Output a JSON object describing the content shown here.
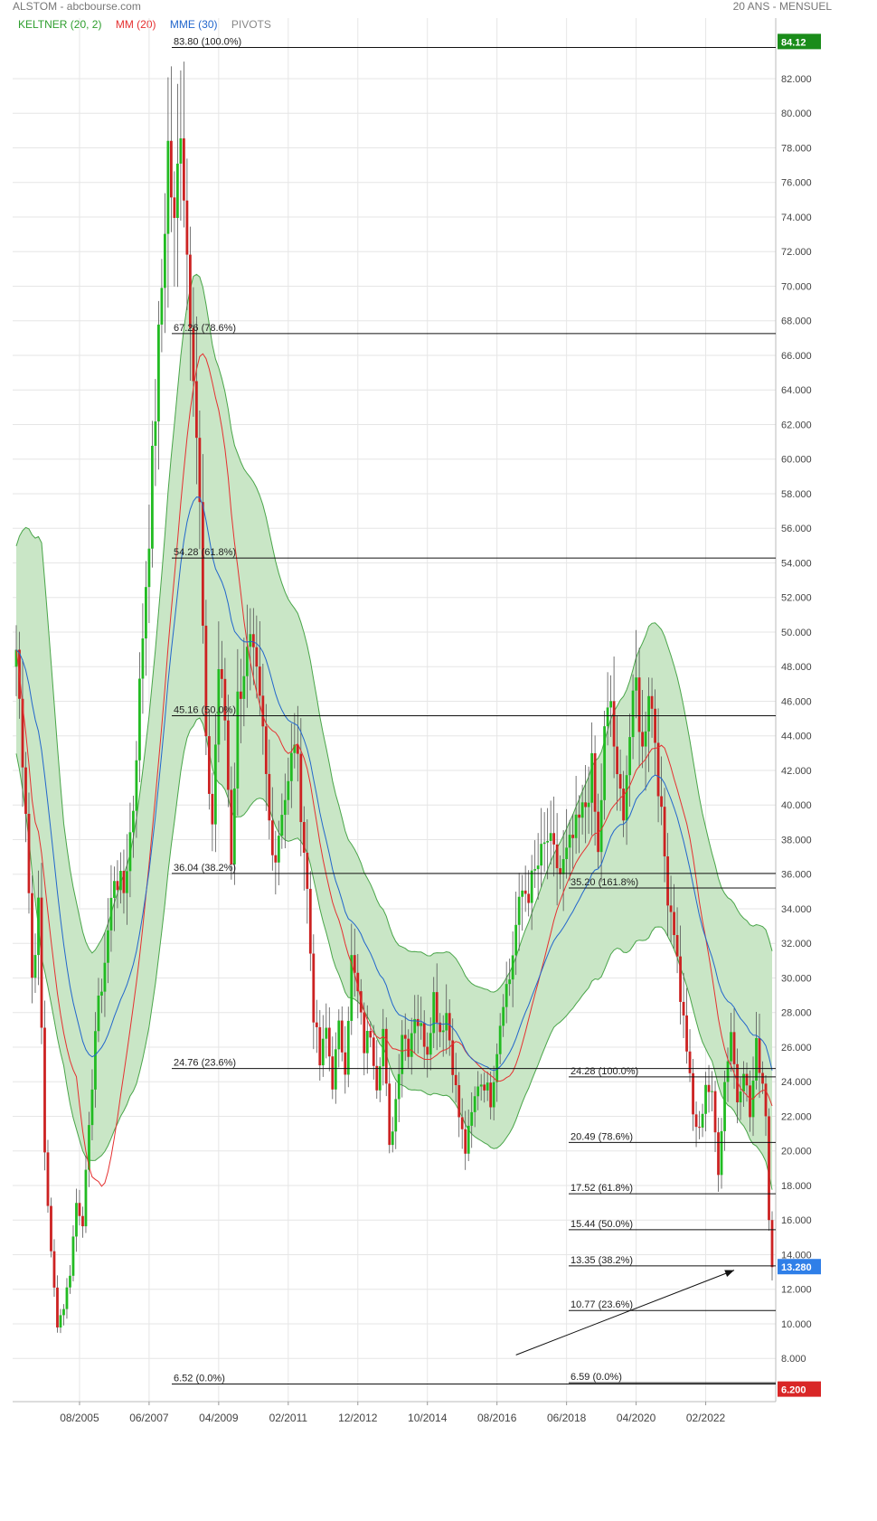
{
  "header": {
    "title": "ALSTOM - abcbourse.com",
    "period": "20 ANS - MENSUEL"
  },
  "legend": {
    "keltner": "KELTNER (20, 2)",
    "mm": "MM (20)",
    "mme": "MME (30)",
    "pivots": "PIVOTS"
  },
  "colors": {
    "up": "#22bb22",
    "down": "#cc2222",
    "mm": "#e53030",
    "mme": "#2266cc",
    "band_fill": "#c9e6c6",
    "band_edge": "#49a549",
    "last_price_bg": "#2f7fe8",
    "top_label_bg": "#1a8c1a",
    "bottom_label_bg": "#d92626"
  },
  "chart_data": {
    "type": "candlestick",
    "title": "ALSTOM",
    "ylim": [
      5.5,
      85.5
    ],
    "y_ticks": [
      8,
      10,
      12,
      14,
      16,
      18,
      20,
      22,
      24,
      26,
      28,
      30,
      32,
      34,
      36,
      38,
      40,
      42,
      44,
      46,
      48,
      50,
      52,
      54,
      56,
      58,
      60,
      62,
      64,
      66,
      68,
      70,
      72,
      74,
      76,
      78,
      80,
      82
    ],
    "y_tick_labels": [
      "8.000",
      "10.000",
      "12.000",
      "14.000",
      "16.000",
      "18.000",
      "20.000",
      "22.000",
      "24.000",
      "26.000",
      "28.000",
      "30.000",
      "32.000",
      "34.000",
      "36.000",
      "38.000",
      "40.000",
      "42.000",
      "44.000",
      "46.000",
      "48.000",
      "50.000",
      "52.000",
      "54.000",
      "56.000",
      "58.000",
      "60.000",
      "62.000",
      "64.000",
      "66.000",
      "68.000",
      "70.000",
      "72.000",
      "74.000",
      "76.000",
      "78.000",
      "80.000",
      "82.000"
    ],
    "x_tick_labels": [
      {
        "label": "08/2005",
        "month": 20
      },
      {
        "label": "06/2007",
        "month": 42
      },
      {
        "label": "04/2009",
        "month": 64
      },
      {
        "label": "02/2011",
        "month": 86
      },
      {
        "label": "12/2012",
        "month": 108
      },
      {
        "label": "10/2014",
        "month": 130
      },
      {
        "label": "08/2016",
        "month": 152
      },
      {
        "label": "06/2018",
        "month": 174
      },
      {
        "label": "04/2020",
        "month": 196
      },
      {
        "label": "02/2022",
        "month": 218
      }
    ],
    "months_total": 240,
    "last_price": "13.280",
    "top_value_label": "84.12",
    "bottom_value_label": "6.200",
    "close_anchors": [
      [
        0,
        49
      ],
      [
        3,
        40
      ],
      [
        5,
        30
      ],
      [
        7,
        34
      ],
      [
        9,
        20
      ],
      [
        11,
        14
      ],
      [
        13,
        10
      ],
      [
        15,
        11
      ],
      [
        17,
        13
      ],
      [
        19,
        17
      ],
      [
        21,
        16
      ],
      [
        23,
        21
      ],
      [
        25,
        27
      ],
      [
        28,
        31
      ],
      [
        31,
        36
      ],
      [
        34,
        35
      ],
      [
        37,
        40
      ],
      [
        40,
        50
      ],
      [
        42,
        56
      ],
      [
        44,
        63
      ],
      [
        46,
        70
      ],
      [
        48,
        78
      ],
      [
        50,
        73
      ],
      [
        52,
        80
      ],
      [
        54,
        72
      ],
      [
        56,
        66
      ],
      [
        58,
        57
      ],
      [
        60,
        43
      ],
      [
        62,
        39
      ],
      [
        64,
        48
      ],
      [
        66,
        45
      ],
      [
        68,
        37
      ],
      [
        70,
        46
      ],
      [
        72,
        48
      ],
      [
        74,
        49
      ],
      [
        76,
        47
      ],
      [
        78,
        44
      ],
      [
        80,
        39
      ],
      [
        82,
        37
      ],
      [
        84,
        40
      ],
      [
        86,
        41
      ],
      [
        88,
        44
      ],
      [
        90,
        40
      ],
      [
        92,
        35
      ],
      [
        94,
        28
      ],
      [
        96,
        25
      ],
      [
        98,
        27
      ],
      [
        100,
        24
      ],
      [
        102,
        27
      ],
      [
        104,
        25
      ],
      [
        106,
        31
      ],
      [
        108,
        29
      ],
      [
        110,
        26
      ],
      [
        112,
        27
      ],
      [
        114,
        24
      ],
      [
        116,
        27
      ],
      [
        118,
        20
      ],
      [
        120,
        23
      ],
      [
        122,
        27
      ],
      [
        124,
        26
      ],
      [
        126,
        28
      ],
      [
        128,
        27
      ],
      [
        130,
        26
      ],
      [
        132,
        29
      ],
      [
        134,
        27
      ],
      [
        136,
        28
      ],
      [
        138,
        25
      ],
      [
        140,
        22
      ],
      [
        142,
        20
      ],
      [
        144,
        22
      ],
      [
        146,
        24
      ],
      [
        148,
        24
      ],
      [
        150,
        23
      ],
      [
        152,
        26
      ],
      [
        154,
        29
      ],
      [
        156,
        30
      ],
      [
        158,
        33
      ],
      [
        160,
        35
      ],
      [
        162,
        35
      ],
      [
        164,
        36
      ],
      [
        166,
        37
      ],
      [
        168,
        38
      ],
      [
        170,
        37
      ],
      [
        172,
        36
      ],
      [
        174,
        37
      ],
      [
        176,
        38
      ],
      [
        178,
        39
      ],
      [
        180,
        40
      ],
      [
        182,
        42
      ],
      [
        184,
        37
      ],
      [
        186,
        44
      ],
      [
        188,
        46
      ],
      [
        190,
        41
      ],
      [
        192,
        40
      ],
      [
        194,
        44
      ],
      [
        196,
        47
      ],
      [
        198,
        43
      ],
      [
        200,
        47
      ],
      [
        202,
        44
      ],
      [
        204,
        39
      ],
      [
        206,
        35
      ],
      [
        208,
        33
      ],
      [
        210,
        29
      ],
      [
        212,
        26
      ],
      [
        214,
        22
      ],
      [
        216,
        21
      ],
      [
        218,
        24
      ],
      [
        220,
        23
      ],
      [
        222,
        19
      ],
      [
        224,
        24
      ],
      [
        226,
        27
      ],
      [
        228,
        23
      ],
      [
        230,
        25
      ],
      [
        232,
        22
      ],
      [
        234,
        26
      ],
      [
        236,
        24
      ],
      [
        237,
        22
      ],
      [
        238,
        16
      ],
      [
        239,
        13.28
      ]
    ],
    "band_halfwidth_anchors": [
      [
        0,
        6
      ],
      [
        8,
        12
      ],
      [
        15,
        7
      ],
      [
        24,
        6
      ],
      [
        36,
        7
      ],
      [
        48,
        11
      ],
      [
        56,
        13
      ],
      [
        64,
        12
      ],
      [
        72,
        10
      ],
      [
        80,
        8
      ],
      [
        92,
        6
      ],
      [
        110,
        4
      ],
      [
        130,
        4
      ],
      [
        150,
        4.5
      ],
      [
        170,
        5
      ],
      [
        190,
        7
      ],
      [
        200,
        9
      ],
      [
        210,
        8
      ],
      [
        220,
        6
      ],
      [
        230,
        6
      ],
      [
        240,
        7
      ]
    ],
    "fib_left": [
      {
        "label": "83.80 (100.0%)",
        "value": 83.8
      },
      {
        "label": "67.26 (78.6%)",
        "value": 67.26
      },
      {
        "label": "54.28 (61.8%)",
        "value": 54.28
      },
      {
        "label": "45.16 (50.0%)",
        "value": 45.16
      },
      {
        "label": "36.04 (38.2%)",
        "value": 36.04
      },
      {
        "label": "24.76 (23.6%)",
        "value": 24.76
      },
      {
        "label": "6.52 (0.0%)",
        "value": 6.52
      }
    ],
    "fib_right": [
      {
        "label": "35.20 (161.8%)",
        "value": 35.2
      },
      {
        "label": "24.28 (100.0%)",
        "value": 24.28
      },
      {
        "label": "20.49 (78.6%)",
        "value": 20.49
      },
      {
        "label": "17.52 (61.8%)",
        "value": 17.52
      },
      {
        "label": "15.44 (50.0%)",
        "value": 15.44
      },
      {
        "label": "13.35 (38.2%)",
        "value": 13.35
      },
      {
        "label": "10.77 (23.6%)",
        "value": 10.77
      },
      {
        "label": "6.59 (0.0%)",
        "value": 6.59
      }
    ],
    "arrow": {
      "from": {
        "month": 158,
        "value": 8.2
      },
      "to": {
        "month": 227,
        "value": 13.1
      }
    },
    "grid": true
  }
}
